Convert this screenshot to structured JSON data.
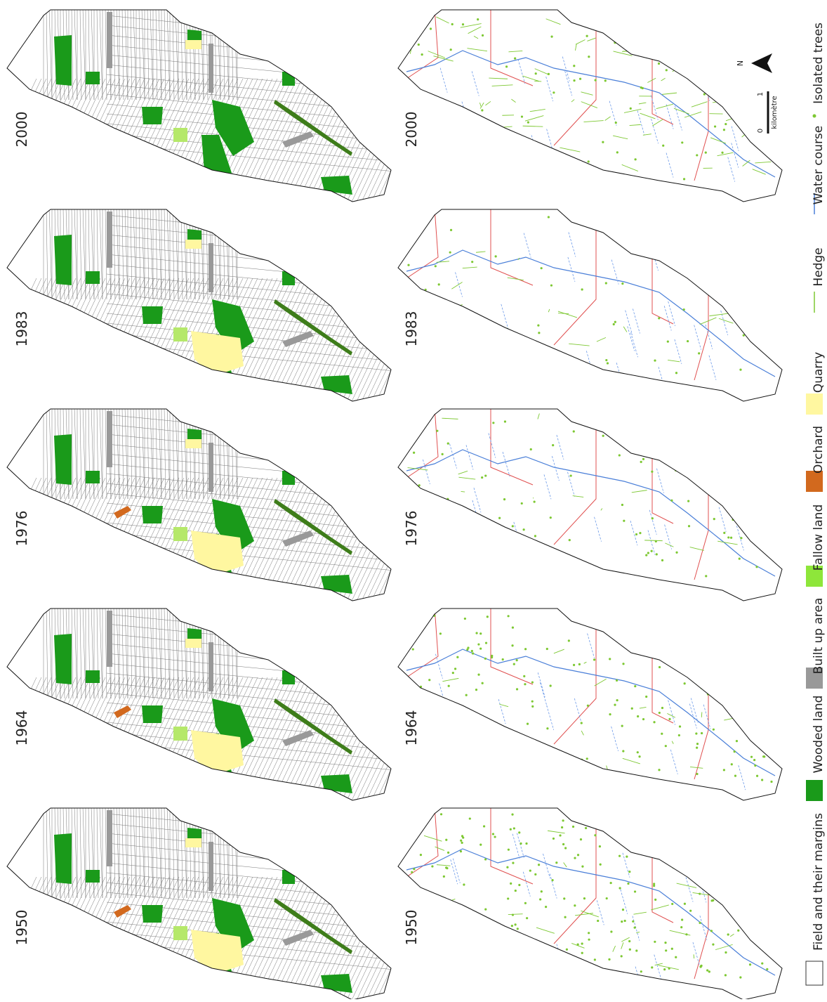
{
  "land_use": {
    "panels": [
      {
        "year": "2000"
      },
      {
        "year": "1983"
      },
      {
        "year": "1976"
      },
      {
        "year": "1964"
      },
      {
        "year": "1950"
      }
    ]
  },
  "hedges": {
    "panels": [
      {
        "year": "2000"
      },
      {
        "year": "1983"
      },
      {
        "year": "1976"
      },
      {
        "year": "1964"
      },
      {
        "year": "1950"
      }
    ]
  },
  "legend": {
    "items": [
      {
        "label": "Field and their margins"
      },
      {
        "label": "Wooded land"
      },
      {
        "label": "Built up area"
      },
      {
        "label": "Fallow land"
      },
      {
        "label": "Orchard"
      },
      {
        "label": "Quarry"
      },
      {
        "label": "Hedge"
      },
      {
        "label": "Water course"
      },
      {
        "label": "Isolated trees"
      }
    ]
  },
  "scale_bar": {
    "start": "0",
    "end": "1",
    "unit": "kilomètre"
  },
  "north": "N"
}
